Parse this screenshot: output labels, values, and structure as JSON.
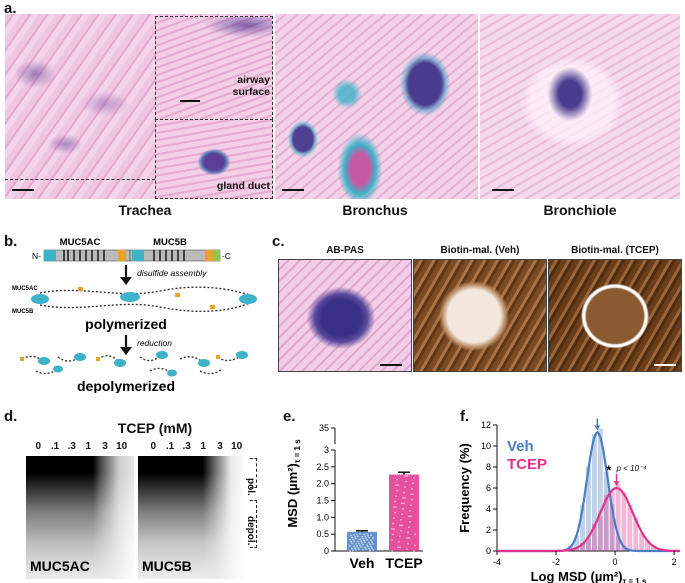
{
  "colors": {
    "he_pink": "#e7b3d8",
    "mucus_purple": "#4a3c8e",
    "ab_cyan": "#3eb2c8",
    "brown_stain": "#7a4a22",
    "veh_blue": "#4a7fc1",
    "tcep_pink": "#e0338c"
  },
  "panel_a": {
    "letter": "a.",
    "captions": [
      "Trachea",
      "Bronchus",
      "Bronchiole"
    ],
    "insets": [
      "airway surface",
      "gland duct"
    ]
  },
  "panel_b": {
    "letter": "b.",
    "gene1": "MUC5AC",
    "gene2": "MUC5B",
    "n_term": "N-",
    "c_term": "-C",
    "step1": "disulfide assembly",
    "state1": "polymerized",
    "step2": "reduction",
    "state2": "depolymerized",
    "label_ac": "MUC5AC",
    "label_b": "MUC5B"
  },
  "panel_c": {
    "letter": "c.",
    "titles": [
      "AB-PAS",
      "Biotin-mal. (Veh)",
      "Biotin-mal. (TCEP)"
    ]
  },
  "panel_d": {
    "letter": "d.",
    "title": "TCEP (mM)",
    "lanes_ac": [
      "0",
      ".1",
      ".3",
      "1",
      "3",
      "10"
    ],
    "lanes_b": [
      "0",
      ".1",
      ".3",
      "1",
      "3",
      "10"
    ],
    "label_ac": "MUC5AC",
    "label_b": "MUC5B",
    "pol": "pol.",
    "depol": "depol."
  },
  "chart_data": [
    {
      "panel": "e.",
      "type": "bar",
      "categories": [
        "Veh",
        "TCEP"
      ],
      "values": [
        0.57,
        2.27
      ],
      "errors": [
        0.03,
        0.07
      ],
      "ylabel": "MSD (µm²)τ = 1 s",
      "ylabel_main": "MSD (µm²)",
      "ylabel_sub": "τ = 1 s",
      "yticks": [
        "0",
        "0.5",
        "1.0",
        "1.5",
        "2.0",
        "2.5",
        "3",
        "35"
      ],
      "ylim": [
        0,
        35
      ],
      "axis_break": true
    },
    {
      "panel": "f.",
      "type": "histogram",
      "series": [
        {
          "name": "Veh",
          "fit_mean": -0.6,
          "fit_sd": 0.35,
          "fit_peak": 11.3
        },
        {
          "name": "TCEP",
          "fit_mean": 0.05,
          "fit_sd": 0.55,
          "fit_peak": 6.0
        }
      ],
      "xlabel": "Log MSD (µm²)τ = 1 s",
      "xlabel_main": "Log MSD (µm²)",
      "xlabel_sub": "τ = 1 s",
      "ylabel": "Frequency (%)",
      "xticks": [
        "-4",
        "-2",
        "0",
        "2"
      ],
      "yticks": [
        "0",
        "2",
        "4",
        "6",
        "8",
        "10",
        "12"
      ],
      "xlim": [
        -4,
        2.2
      ],
      "ylim": [
        0,
        12
      ],
      "annotation": "p < 10⁻⁴",
      "annotation_star": "*"
    }
  ]
}
